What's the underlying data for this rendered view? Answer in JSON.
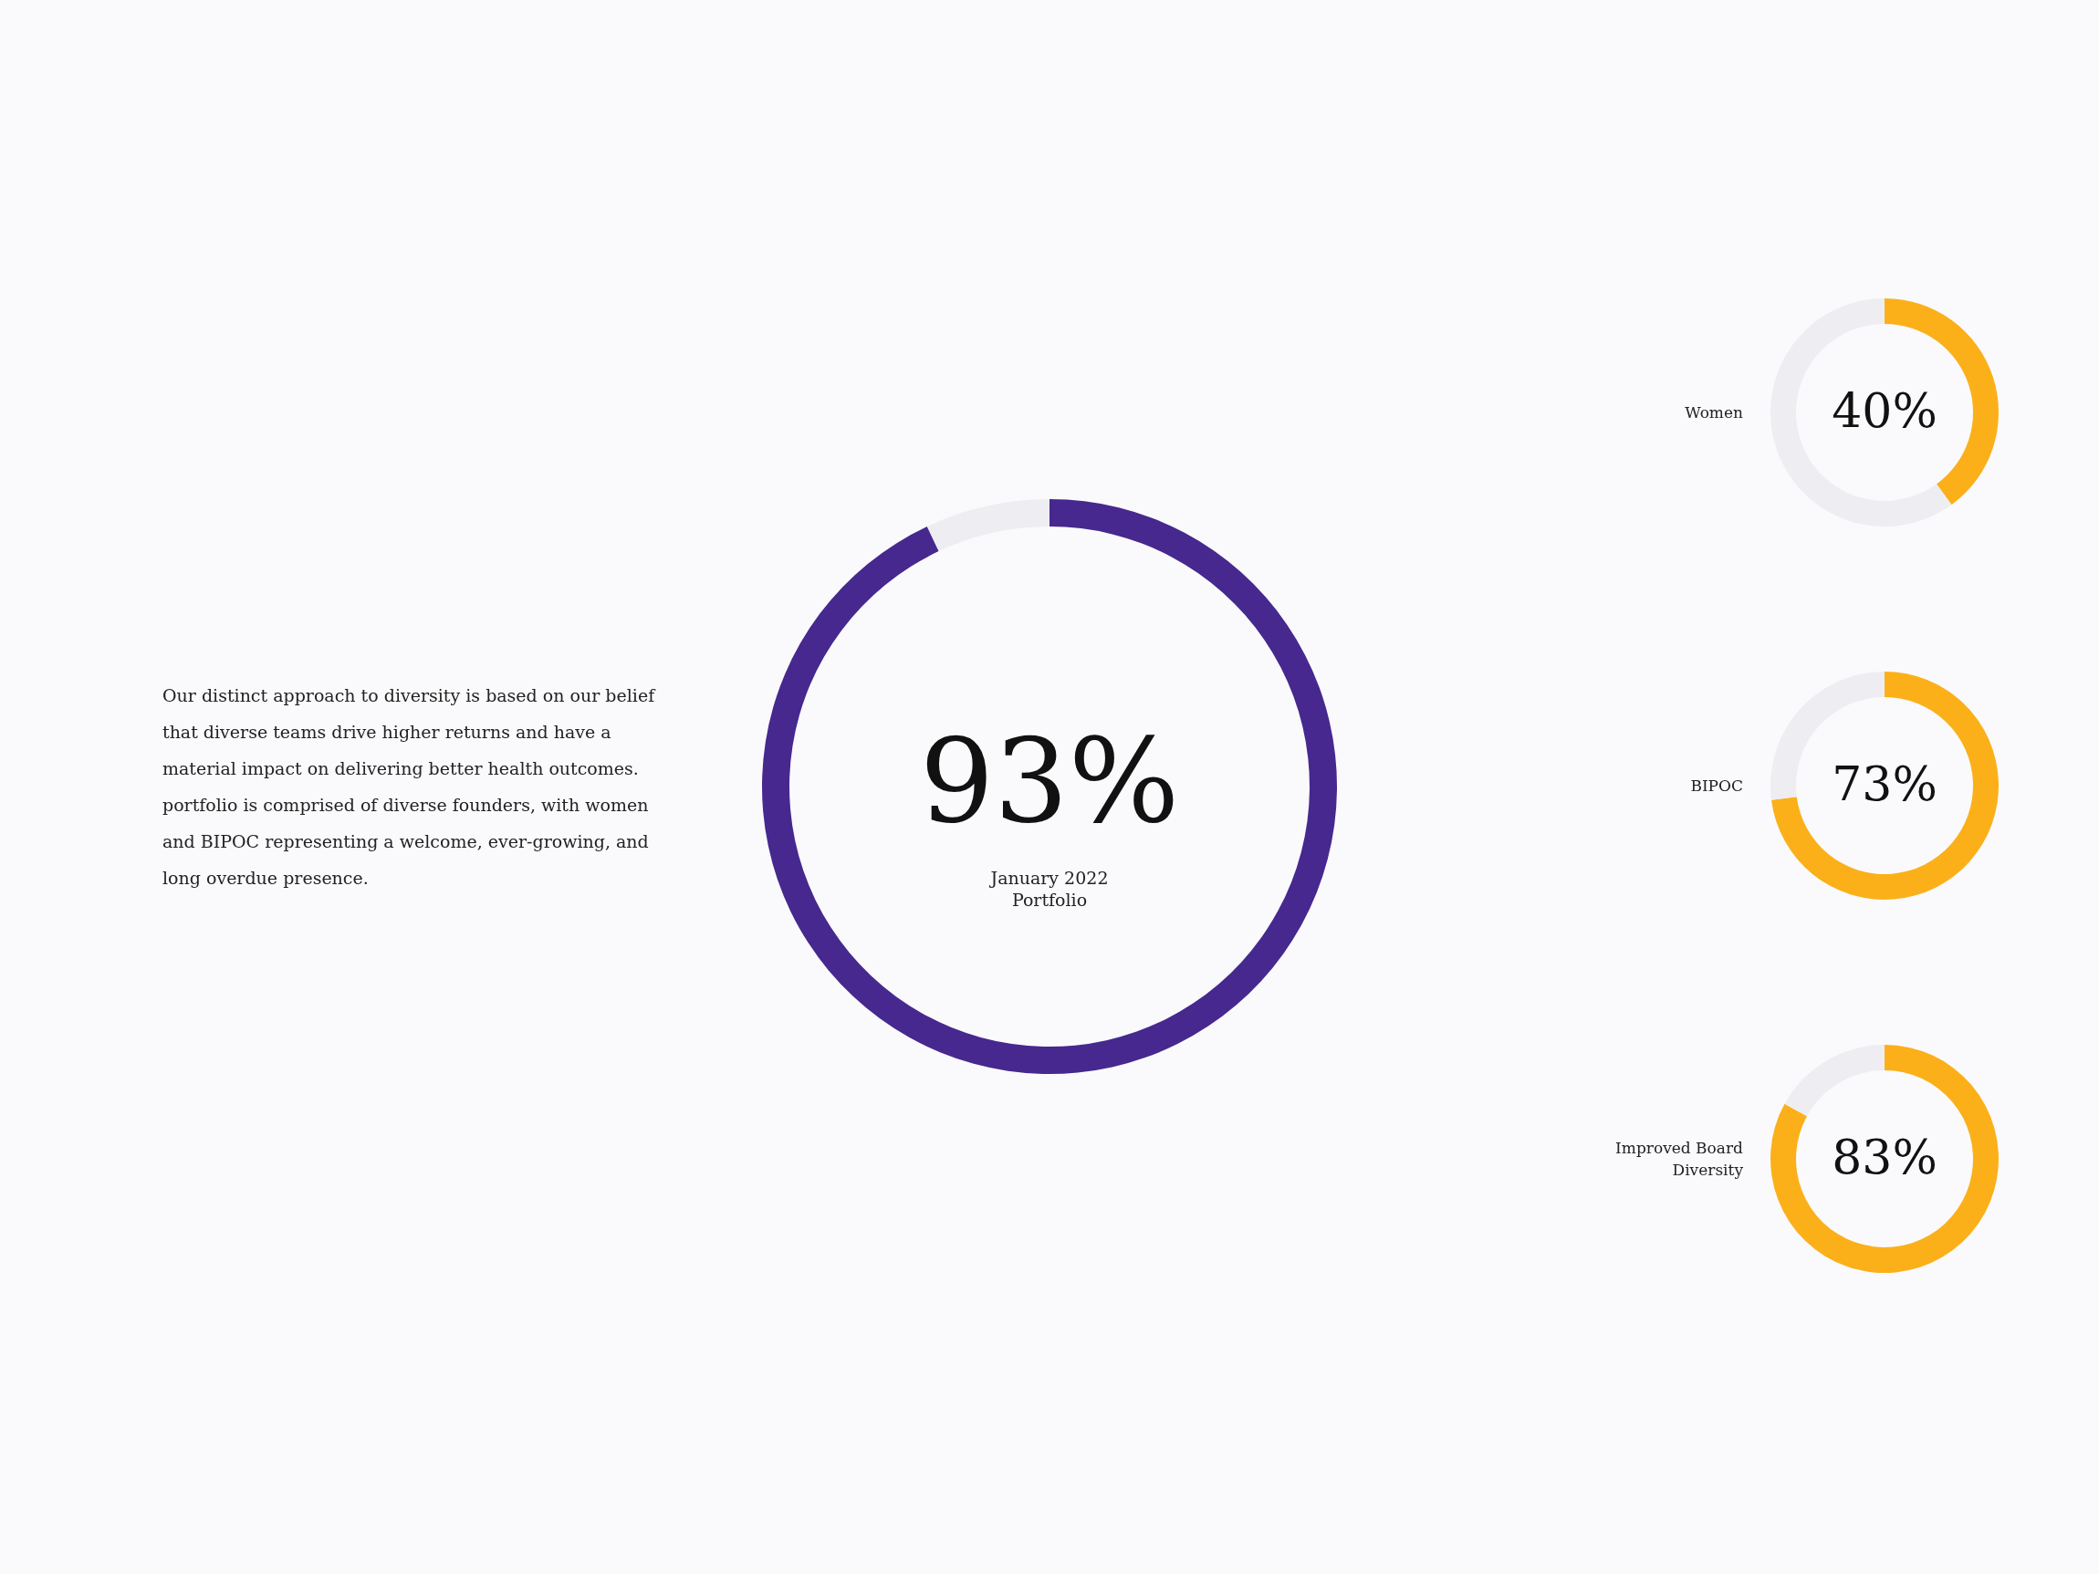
{
  "chart_data": [
    {
      "type": "other",
      "annotations": [
        "Our distinct approach to diversity is based on our belief that diverse teams drive higher returns and have a material impact on delivering better health outcomes. portfolio is comprised of diverse founders, with women and BIPOC representing a welcome, ever-growing, and long overdue presence."
      ]
    },
    {
      "type": "donut",
      "categories": [
        null,
        null
      ],
      "values": [
        93,
        7
      ],
      "colors": [
        "#46288f",
        "#eeedf2"
      ],
      "value_labels": [
        "93%",
        null
      ],
      "annotations": [
        "January 2022",
        "Portfolio"
      ]
    },
    {
      "type": "donut",
      "title": "Women",
      "categories": [
        null,
        null
      ],
      "values": [
        40,
        60
      ],
      "colors": [
        "#fbb01a",
        "#eeedf2"
      ],
      "value_labels": [
        "40%",
        null
      ]
    },
    {
      "type": "donut",
      "title": "BIPOC",
      "categories": [
        null,
        null
      ],
      "values": [
        73,
        27
      ],
      "colors": [
        "#fbb01a",
        "#eeedf2"
      ],
      "value_labels": [
        "73%",
        null
      ]
    },
    {
      "type": "donut",
      "title": "Improved Board Diversity",
      "categories": [
        null,
        null
      ],
      "values": [
        83,
        17
      ],
      "colors": [
        "#fbb01a",
        "#eeedf2"
      ],
      "value_labels": [
        "83%",
        null
      ]
    }
  ]
}
